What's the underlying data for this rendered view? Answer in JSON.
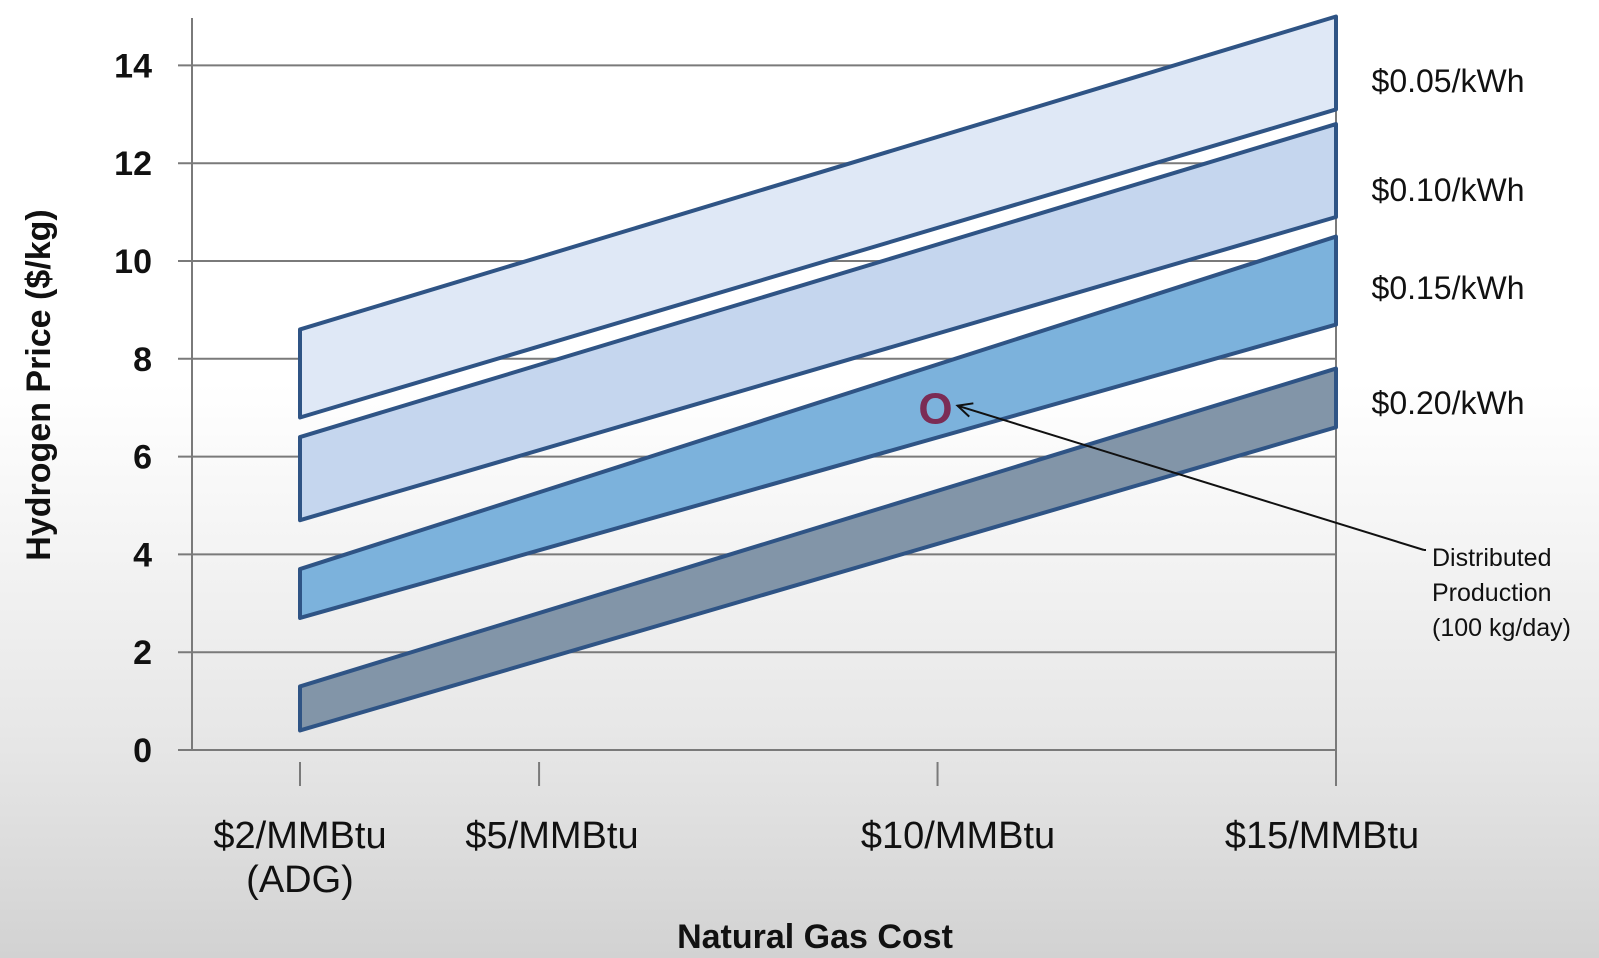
{
  "chart_data": {
    "type": "area",
    "xlabel": "Natural Gas Cost",
    "ylabel": "Hydrogen Price ($/kg)",
    "y_ticks": [
      "0",
      "2",
      "4",
      "6",
      "8",
      "10",
      "12",
      "14"
    ],
    "ylim": [
      0,
      15
    ],
    "grid": true,
    "x_categories": [
      {
        "lines": [
          "$2/MMBtu",
          "(ADG)"
        ],
        "value": 2
      },
      {
        "lines": [
          "$5/MMBtu"
        ],
        "value": 5
      },
      {
        "lines": [
          "$10/MMBtu"
        ],
        "value": 10
      },
      {
        "lines": [
          "$15/MMBtu"
        ],
        "value": 15
      }
    ],
    "bands": [
      {
        "name": "$0.05/kWh",
        "x": [
          2,
          15
        ],
        "lower": [
          6.8,
          13.1
        ],
        "upper": [
          8.6,
          15.0
        ],
        "color": "#dfe8f6"
      },
      {
        "name": "$0.10/kWh",
        "x": [
          2,
          15
        ],
        "lower": [
          4.7,
          10.9
        ],
        "upper": [
          6.4,
          12.8
        ],
        "color": "#c5d6ee"
      },
      {
        "name": "$0.15/kWh",
        "x": [
          2,
          15
        ],
        "lower": [
          2.7,
          8.7
        ],
        "upper": [
          3.7,
          10.5
        ],
        "color": "#7cb2dc"
      },
      {
        "name": "$0.20/kWh",
        "x": [
          2,
          15
        ],
        "lower": [
          0.4,
          6.6
        ],
        "upper": [
          1.3,
          7.8
        ],
        "color": "#8295a8"
      }
    ],
    "annotation": {
      "marker": "O",
      "x": 10,
      "y": 7,
      "lines": [
        "Distributed",
        "Production",
        "(100 kg/day)"
      ]
    }
  }
}
